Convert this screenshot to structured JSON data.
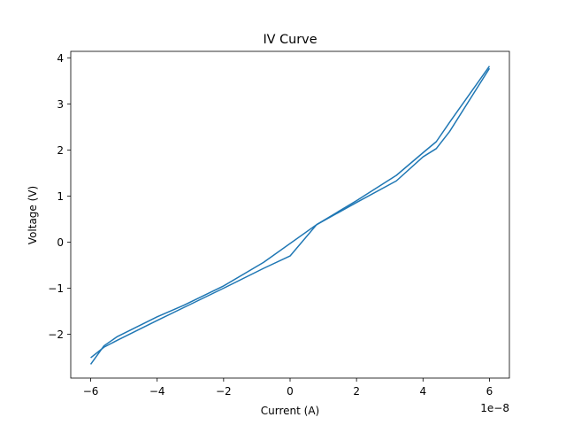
{
  "chart_data": {
    "type": "line",
    "title": "IV Curve",
    "xlabel": "Current (A)",
    "ylabel": "Voltage (V)",
    "x_offset_label": "1e−8",
    "xlim": [
      -6.6e-08,
      6.6e-08
    ],
    "ylim": [
      -2.95,
      4.14
    ],
    "x_ticks": [
      -6e-08,
      -4e-08,
      -2e-08,
      0,
      2e-08,
      4e-08,
      6e-08
    ],
    "x_tick_labels": [
      "−6",
      "−4",
      "−2",
      "0",
      "2",
      "4",
      "6"
    ],
    "y_ticks": [
      -2,
      -1,
      0,
      1,
      2,
      3,
      4
    ],
    "y_tick_labels": [
      "−2",
      "−1",
      "0",
      "1",
      "2",
      "3",
      "4"
    ],
    "grid": false,
    "line_color": "#1f77b4",
    "series": [
      {
        "points": [
          [
            -6e-08,
            -2.51
          ],
          [
            -5.6e-08,
            -2.28
          ],
          [
            -5.2e-08,
            -2.13
          ],
          [
            -4e-08,
            -1.7
          ],
          [
            -3.2e-08,
            -1.42
          ],
          [
            -2e-08,
            -1.0
          ],
          [
            -8e-09,
            -0.57
          ],
          [
            0.0,
            -0.3
          ],
          [
            8e-09,
            0.38
          ],
          [
            2e-08,
            0.9
          ],
          [
            3.2e-08,
            1.45
          ],
          [
            4e-08,
            1.94
          ],
          [
            4.4e-08,
            2.18
          ],
          [
            4.8e-08,
            2.6
          ],
          [
            6e-08,
            3.82
          ]
        ]
      },
      {
        "points": [
          [
            6e-08,
            3.77
          ],
          [
            4.8e-08,
            2.4
          ],
          [
            4.4e-08,
            2.03
          ],
          [
            4e-08,
            1.85
          ],
          [
            3.2e-08,
            1.33
          ],
          [
            2e-08,
            0.86
          ],
          [
            8e-09,
            0.38
          ],
          [
            -8e-09,
            -0.44
          ],
          [
            -2e-08,
            -0.95
          ],
          [
            -3.2e-08,
            -1.37
          ],
          [
            -4e-08,
            -1.62
          ],
          [
            -5.2e-08,
            -2.05
          ],
          [
            -5.6e-08,
            -2.25
          ],
          [
            -6e-08,
            -2.65
          ]
        ]
      }
    ]
  }
}
